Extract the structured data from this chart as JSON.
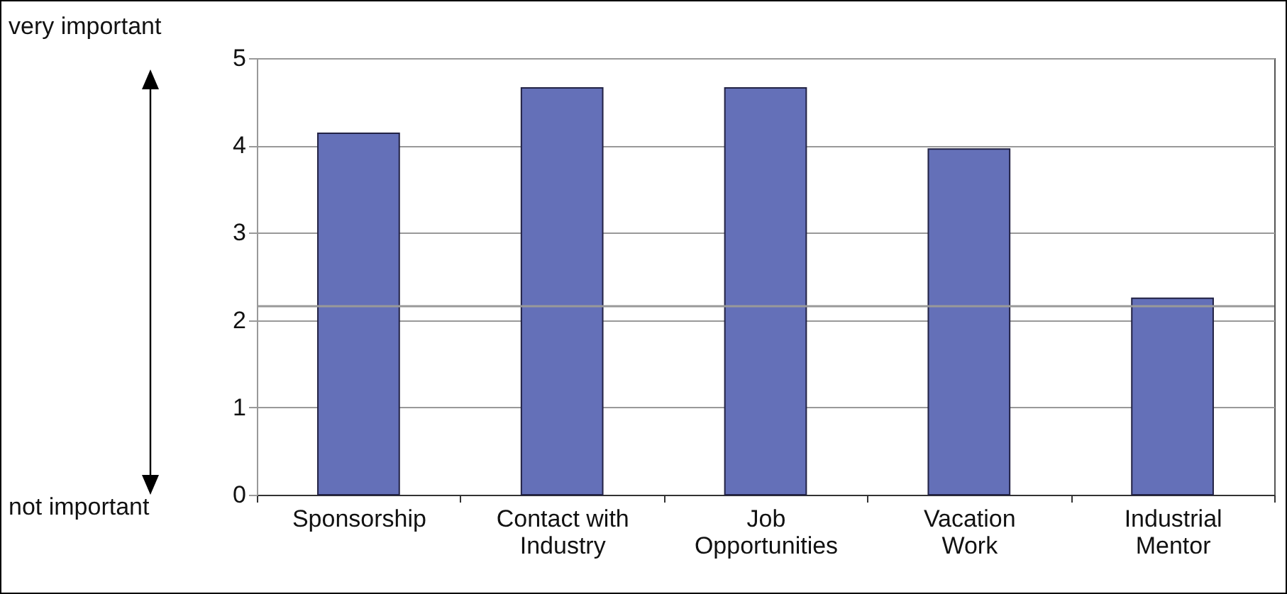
{
  "chart_data": {
    "type": "bar",
    "categories": [
      "Sponsorship",
      "Contact with Industry",
      "Job Opportunities",
      "Vacation Work",
      "Industrial Mentor"
    ],
    "values": [
      4.14,
      4.66,
      4.66,
      3.96,
      2.25
    ],
    "color": "#6470b8",
    "ylim": [
      0,
      5
    ],
    "yticks": [
      0,
      1,
      2,
      3,
      4,
      5
    ],
    "grid": "y",
    "ref_lines": [
      {
        "axis": "y",
        "value": 2.16,
        "color": "#999999"
      }
    ],
    "annotations": [
      "very important",
      "not important"
    ]
  }
}
